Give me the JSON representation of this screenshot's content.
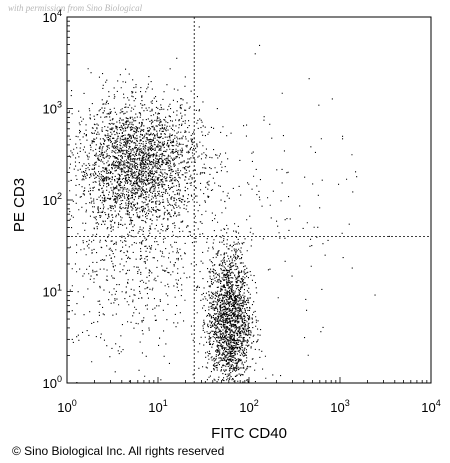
{
  "watermark": "with permission from Sino Biological",
  "copyright": "© Sino Biological Inc. All rights reserved",
  "chart_data": {
    "type": "scatter",
    "title": "",
    "xlabel": "FITC CD40",
    "ylabel": "PE CD3",
    "x_scale": "log",
    "y_scale": "log",
    "xlim": [
      1,
      10000
    ],
    "ylim": [
      1,
      10000
    ],
    "x_tick_labels": [
      {
        "base": "10",
        "exp": "0"
      },
      {
        "base": "10",
        "exp": "1"
      },
      {
        "base": "10",
        "exp": "2"
      },
      {
        "base": "10",
        "exp": "3"
      },
      {
        "base": "10",
        "exp": "4"
      }
    ],
    "y_tick_labels": [
      {
        "base": "10",
        "exp": "0"
      },
      {
        "base": "10",
        "exp": "1"
      },
      {
        "base": "10",
        "exp": "2"
      },
      {
        "base": "10",
        "exp": "3"
      },
      {
        "base": "10",
        "exp": "4"
      }
    ],
    "quadrant_gates": {
      "x": 25,
      "y": 40
    },
    "grid": false,
    "legend": "none",
    "point_color": "#000000",
    "populations": [
      {
        "center": [
          6,
          250
        ],
        "spread_x_decades": 0.35,
        "spread_y_decades": 0.35,
        "events": 2600
      },
      {
        "center": [
          60,
          5
        ],
        "spread_x_decades": 0.12,
        "spread_y_decades": 0.4,
        "events": 1900
      },
      {
        "center": [
          5,
          20
        ],
        "spread_x_decades": 0.45,
        "spread_y_decades": 0.55,
        "events": 600
      },
      {
        "center": [
          100,
          60
        ],
        "spread_x_decades": 0.6,
        "spread_y_decades": 0.7,
        "events": 180
      }
    ]
  }
}
